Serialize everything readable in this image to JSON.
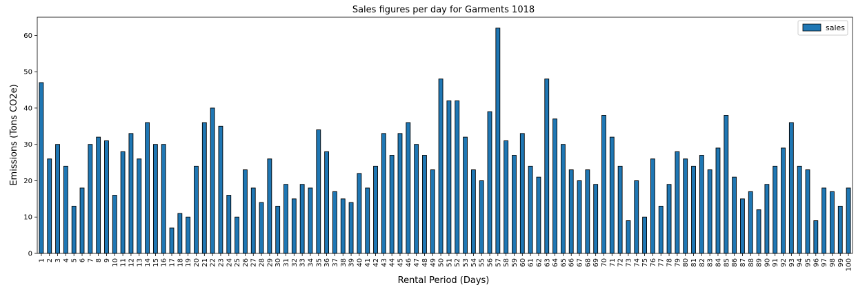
{
  "chart_data": {
    "type": "bar",
    "title": "Sales figures per day for Garments 1018",
    "xlabel": "Rental Period (Days)",
    "ylabel": "Emissions (Tons CO2e)",
    "ylim": [
      0,
      65
    ],
    "yticks": [
      0,
      10,
      20,
      30,
      40,
      50,
      60
    ],
    "grid": false,
    "legend_position": "top-right",
    "categories": [
      "1",
      "2",
      "3",
      "4",
      "5",
      "6",
      "7",
      "8",
      "9",
      "10",
      "11",
      "12",
      "13",
      "14",
      "15",
      "16",
      "17",
      "18",
      "19",
      "20",
      "21",
      "22",
      "23",
      "24",
      "25",
      "26",
      "27",
      "28",
      "29",
      "30",
      "31",
      "32",
      "33",
      "34",
      "35",
      "36",
      "37",
      "38",
      "39",
      "40",
      "41",
      "42",
      "43",
      "44",
      "45",
      "46",
      "47",
      "48",
      "49",
      "50",
      "51",
      "52",
      "53",
      "54",
      "55",
      "56",
      "57",
      "58",
      "59",
      "60",
      "61",
      "62",
      "63",
      "64",
      "65",
      "66",
      "67",
      "68",
      "69",
      "70",
      "71",
      "72",
      "73",
      "74",
      "75",
      "76",
      "77",
      "78",
      "79",
      "80",
      "81",
      "82",
      "83",
      "84",
      "85",
      "86",
      "87",
      "88",
      "89",
      "90",
      "91",
      "92",
      "93",
      "94",
      "95",
      "96",
      "97",
      "98",
      "99",
      "100"
    ],
    "series": [
      {
        "name": "sales",
        "color": "#1f77b4",
        "values": [
          47,
          26,
          30,
          24,
          13,
          18,
          30,
          32,
          31,
          16,
          28,
          33,
          26,
          36,
          30,
          30,
          7,
          11,
          10,
          24,
          36,
          40,
          35,
          16,
          10,
          23,
          18,
          14,
          26,
          13,
          19,
          15,
          19,
          18,
          34,
          28,
          17,
          15,
          14,
          22,
          18,
          24,
          33,
          27,
          33,
          36,
          30,
          27,
          23,
          48,
          42,
          42,
          32,
          23,
          20,
          39,
          62,
          31,
          27,
          33,
          24,
          21,
          48,
          37,
          30,
          23,
          20,
          23,
          19,
          38,
          32,
          24,
          9,
          20,
          10,
          26,
          13,
          19,
          28,
          26,
          24,
          27,
          23,
          29,
          38,
          21,
          15,
          17,
          12,
          19,
          24,
          29,
          36,
          24,
          23,
          9,
          18,
          17,
          13,
          18
        ]
      }
    ]
  }
}
